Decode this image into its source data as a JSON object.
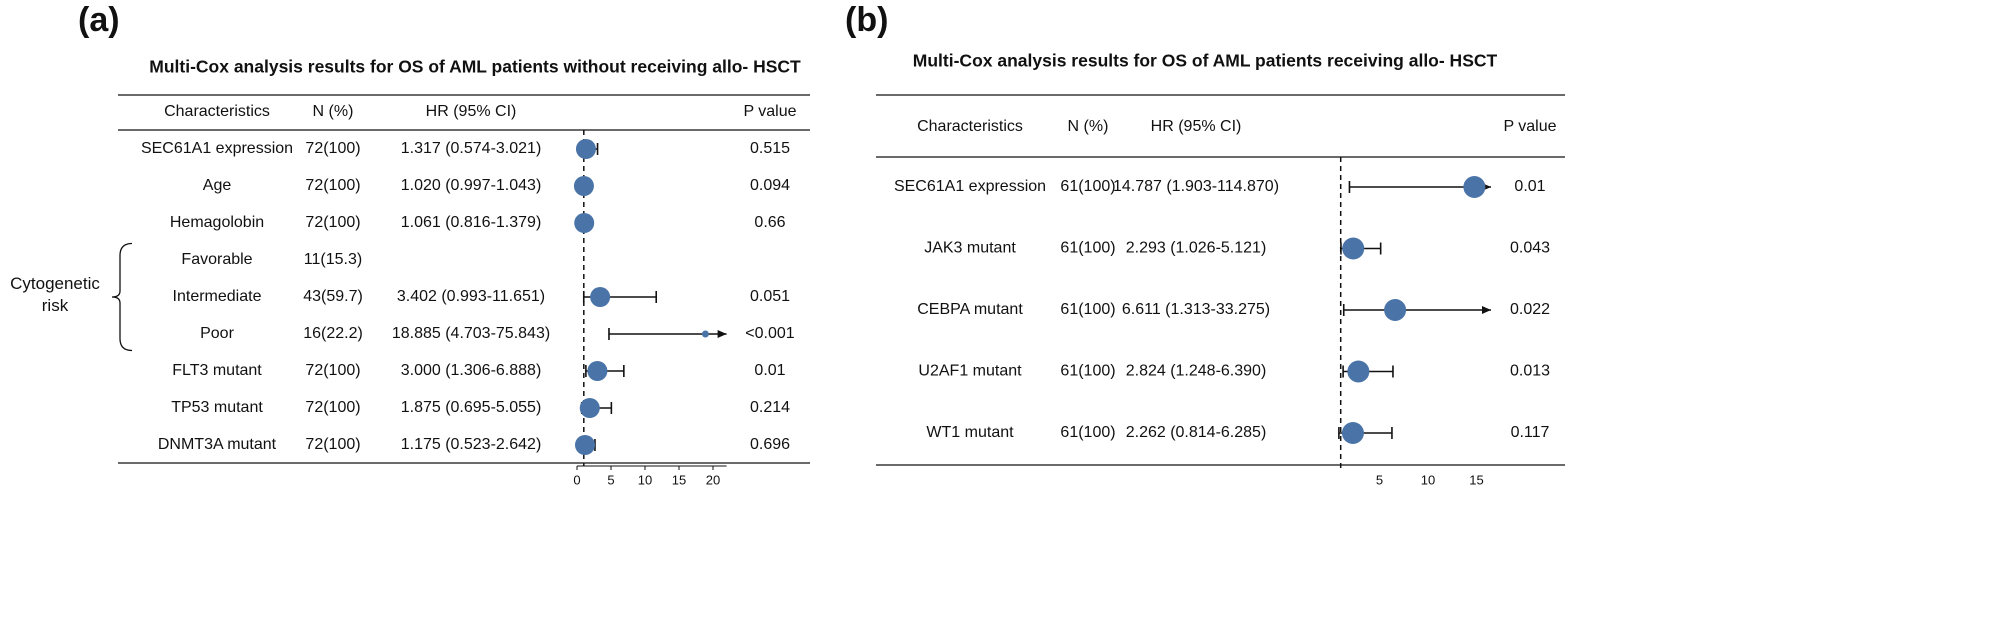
{
  "chart_data": [
    {
      "type": "forest",
      "panel_label": "(a)",
      "title": "Multi-Cox analysis results for OS of AML patients without receiving allo- HSCT",
      "columns": [
        "Characteristics",
        "N (%)",
        "HR (95% CI)",
        "P value"
      ],
      "rows": [
        {
          "characteristic": "SEC61A1 expression",
          "n": "72(100)",
          "hr_label": "1.317 (0.574-3.021)",
          "p": "0.515",
          "hr": 1.317,
          "lower": 0.574,
          "upper": 3.021
        },
        {
          "characteristic": "Age",
          "n": "72(100)",
          "hr_label": "1.020 (0.997-1.043)",
          "p": "0.094",
          "hr": 1.02,
          "lower": 0.997,
          "upper": 1.043
        },
        {
          "characteristic": "Hemagolobin",
          "n": "72(100)",
          "hr_label": "1.061 (0.816-1.379)",
          "p": "0.66",
          "hr": 1.061,
          "lower": 0.816,
          "upper": 1.379
        },
        {
          "characteristic": "Favorable",
          "n": "11(15.3)",
          "hr_label": null,
          "p": null,
          "hr": null,
          "lower": null,
          "upper": null
        },
        {
          "characteristic": "Intermediate",
          "n": "43(59.7)",
          "hr_label": "3.402 (0.993-11.651)",
          "p": "0.051",
          "hr": 3.402,
          "lower": 0.993,
          "upper": 11.651
        },
        {
          "characteristic": "Poor",
          "n": "16(22.2)",
          "hr_label": "18.885 (4.703-75.843)",
          "p": "<0.001",
          "hr": 18.885,
          "lower": 4.703,
          "upper": 75.843
        },
        {
          "characteristic": "FLT3 mutant",
          "n": "72(100)",
          "hr_label": "3.000 (1.306-6.888)",
          "p": "0.01",
          "hr": 3.0,
          "lower": 1.306,
          "upper": 6.888
        },
        {
          "characteristic": "TP53 mutant",
          "n": "72(100)",
          "hr_label": "1.875 (0.695-5.055)",
          "p": "0.214",
          "hr": 1.875,
          "lower": 0.695,
          "upper": 5.055
        },
        {
          "characteristic": "DNMT3A mutant",
          "n": "72(100)",
          "hr_label": "1.175 (0.523-2.642)",
          "p": "0.696",
          "hr": 1.175,
          "lower": 0.523,
          "upper": 2.642
        }
      ],
      "groups": [
        {
          "label": "Cytogenetic risk",
          "rows": [
            3,
            4,
            5
          ]
        }
      ],
      "xlim": [
        0,
        22
      ],
      "xticks": [
        0,
        5,
        10,
        15,
        20
      ],
      "ref_line": 1,
      "axis_line": true,
      "color": "#4a74a8"
    },
    {
      "type": "forest",
      "panel_label": "(b)",
      "title": "Multi-Cox analysis results for OS of AML patients receiving allo- HSCT",
      "columns": [
        "Characteristics",
        "N (%)",
        "HR (95% CI)",
        "P value"
      ],
      "rows": [
        {
          "characteristic": "SEC61A1 expression",
          "n": "61(100)",
          "hr_label": "14.787 (1.903-114.870)",
          "p": "0.01",
          "hr": 14.787,
          "lower": 1.903,
          "upper": 114.87
        },
        {
          "characteristic": "JAK3 mutant",
          "n": "61(100)",
          "hr_label": "2.293 (1.026-5.121)",
          "p": "0.043",
          "hr": 2.293,
          "lower": 1.026,
          "upper": 5.121
        },
        {
          "characteristic": "CEBPA mutant",
          "n": "61(100)",
          "hr_label": "6.611 (1.313-33.275)",
          "p": "0.022",
          "hr": 6.611,
          "lower": 1.313,
          "upper": 33.275
        },
        {
          "characteristic": "U2AF1 mutant",
          "n": "61(100)",
          "hr_label": "2.824 (1.248-6.390)",
          "p": "0.013",
          "hr": 2.824,
          "lower": 1.248,
          "upper": 6.39
        },
        {
          "characteristic": "WT1 mutant",
          "n": "61(100)",
          "hr_label": "2.262 (0.814-6.285)",
          "p": "0.117",
          "hr": 2.262,
          "lower": 0.814,
          "upper": 6.285
        }
      ],
      "groups": [],
      "xlim": [
        0,
        16.5
      ],
      "xticks": [
        5,
        10,
        15
      ],
      "ref_line": 1,
      "axis_line": false,
      "color": "#4a74a8"
    }
  ]
}
